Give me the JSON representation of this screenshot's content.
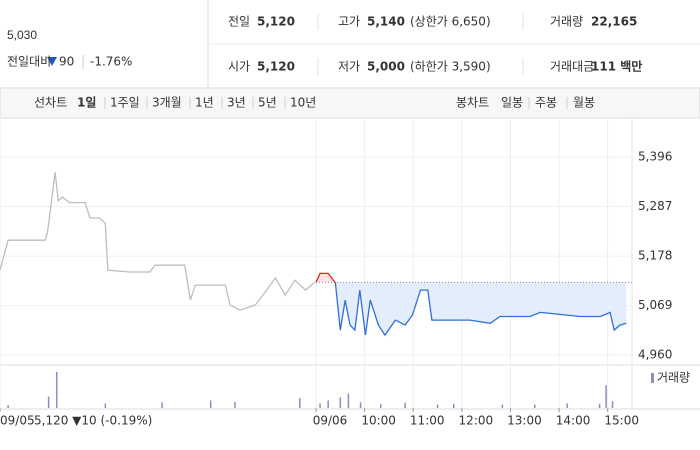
{
  "header": {
    "price": "5,030",
    "change_label": "전일대비",
    "change": "90",
    "change_pct": "-1.76%",
    "stats": [
      {
        "label": "전일",
        "value": "5,120"
      },
      {
        "label": "고가",
        "value": "5,140",
        "note": "(상한가 6,650)",
        "color": "#e0241b"
      },
      {
        "label": "거래량",
        "value": "22,165"
      },
      {
        "label": "시가",
        "value": "5,120"
      },
      {
        "label": "저가",
        "value": "5,000",
        "note": "(하한가 3,590)",
        "color": "#1e57c8"
      },
      {
        "label": "거래대금",
        "value": "111 백만"
      }
    ]
  },
  "tabs": {
    "line_label": "선차트",
    "line": [
      "1일",
      "1주일",
      "3개월",
      "1년",
      "3년",
      "5년",
      "10년"
    ],
    "candle_label": "봉차트",
    "candle": [
      "일봉",
      "주봉",
      "월봉"
    ]
  },
  "chart_data": {
    "type": "line",
    "xlim": [
      0,
      780
    ],
    "xticks": [
      {
        "value": 0,
        "label": "09/05"
      },
      {
        "value": 390,
        "label": "09/06"
      },
      {
        "value": 450,
        "label": "10:00"
      },
      {
        "value": 510,
        "label": "11:00"
      },
      {
        "value": 570,
        "label": "12:00"
      },
      {
        "value": 630,
        "label": "13:00"
      },
      {
        "value": 690,
        "label": "14:00"
      },
      {
        "value": 750,
        "label": "15:00"
      }
    ],
    "ylim": [
      4938,
      5478
    ],
    "yticks": [
      {
        "value": 4960,
        "label": "4,960"
      },
      {
        "value": 5069,
        "label": "5,069"
      },
      {
        "value": 5178,
        "label": "5,178"
      },
      {
        "value": 5287,
        "label": "5,287"
      },
      {
        "value": 5396,
        "label": "5,396"
      }
    ],
    "baseline": 5120,
    "series": [
      {
        "color": "#bdbdbd",
        "x": [
          0,
          10,
          37,
          56,
          59,
          68,
          72,
          77,
          86,
          105,
          111,
          123,
          130,
          133,
          160,
          185,
          191,
          228,
          235,
          241,
          278,
          284,
          296,
          315,
          327,
          340,
          352,
          364,
          377,
          388
        ],
        "values": [
          5147,
          5213,
          5213,
          5213,
          5235,
          5363,
          5300,
          5308,
          5296,
          5296,
          5262,
          5262,
          5250,
          5147,
          5143,
          5143,
          5158,
          5158,
          5081,
          5114,
          5114,
          5070,
          5059,
          5070,
          5098,
          5130,
          5092,
          5125,
          5103,
          5120
        ]
      },
      {
        "color": "#2f6fd8",
        "up_color": "#e0241b",
        "fill": "#e3edfb",
        "up_fill": "#fbe4e4",
        "x": [
          390,
          395,
          405,
          414,
          420,
          426,
          432,
          438,
          444,
          451,
          457,
          467,
          475,
          488,
          500,
          509,
          519,
          528,
          533,
          556,
          580,
          605,
          617,
          654,
          667,
          716,
          741,
          753,
          758,
          765,
          773
        ],
        "values": [
          5120,
          5140,
          5140,
          5119,
          5015,
          5081,
          5026,
          5015,
          5103,
          5004,
          5081,
          5026,
          5004,
          5037,
          5026,
          5048,
          5103,
          5103,
          5037,
          5037,
          5037,
          5030,
          5045,
          5045,
          5054,
          5045,
          5045,
          5054,
          5015,
          5026,
          5030
        ]
      }
    ],
    "volume": {
      "label": "거래량",
      "color": "#9a86c0",
      "ylim": [
        0,
        1000
      ],
      "x": [
        10,
        60,
        70,
        130,
        200,
        260,
        290,
        370,
        395,
        405,
        420,
        430,
        445,
        470,
        500,
        540,
        560,
        620,
        660,
        700,
        740,
        748,
        756
      ],
      "values": [
        80,
        300,
        950,
        120,
        150,
        200,
        160,
        260,
        120,
        200,
        280,
        380,
        150,
        100,
        140,
        90,
        110,
        90,
        90,
        120,
        110,
        600,
        180
      ]
    },
    "info": "5,120 ▼10 (-0.19%)"
  }
}
